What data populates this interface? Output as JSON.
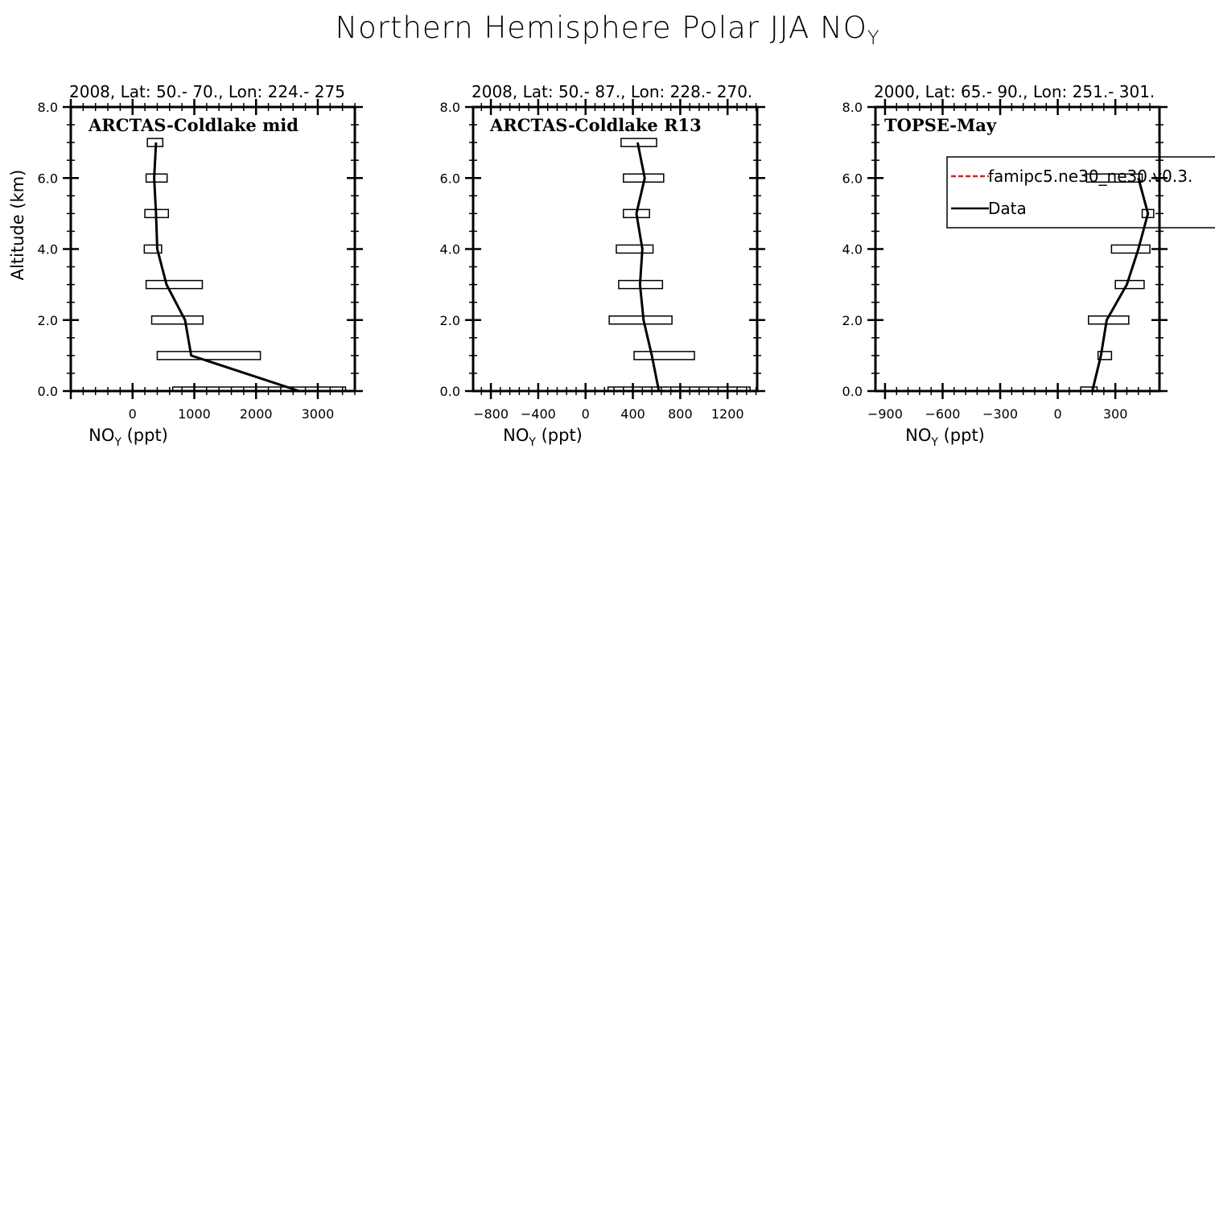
{
  "figure": {
    "title": "Northern Hemisphere Polar JJA NO",
    "title_sub": "Y",
    "background": "#ffffff"
  },
  "chart_data": [
    {
      "type": "line",
      "panel_name": "ARCTAS-Coldlake mid",
      "header": "2008, Lat:  50.- 70., Lon: 224.- 275",
      "xlabel": "NO",
      "xlabel_sub": "Y",
      "xlabel_unit": "(ppt)",
      "ylabel": "Altitude (km)",
      "xlim": [
        -1000,
        3600
      ],
      "ylim": [
        0,
        8
      ],
      "xticks": [
        0,
        1000,
        2000,
        3000
      ],
      "yticks": [
        "0.0",
        "2.0",
        "4.0",
        "6.0",
        "8.0"
      ],
      "series": [
        {
          "name": "Data",
          "color": "#000000",
          "altitude": [
            0,
            1,
            2,
            3,
            4,
            5,
            6,
            7
          ],
          "values": [
            2700,
            950,
            850,
            550,
            400,
            380,
            350,
            380
          ],
          "bars": [
            [
              650,
              3450
            ],
            [
              400,
              2070
            ],
            [
              310,
              1140
            ],
            [
              220,
              1130
            ],
            [
              190,
              470
            ],
            [
              200,
              580
            ],
            [
              220,
              560
            ],
            [
              240,
              490
            ]
          ]
        }
      ]
    },
    {
      "type": "line",
      "panel_name": "ARCTAS-Coldlake R13",
      "header": "2008, Lat:  50.- 87., Lon: 228.- 270.",
      "xlabel": "NO",
      "xlabel_sub": "Y",
      "xlabel_unit": "(ppt)",
      "ylabel": "",
      "xlim": [
        -950,
        1450
      ],
      "ylim": [
        0,
        8
      ],
      "xticks": [
        -800,
        -400,
        0,
        400,
        800,
        1200
      ],
      "yticks": [
        "0.0",
        "2.0",
        "4.0",
        "6.0",
        "8.0"
      ],
      "series": [
        {
          "name": "Data",
          "color": "#000000",
          "altitude": [
            0,
            1,
            2,
            3,
            4,
            5,
            6,
            7
          ],
          "values": [
            620,
            560,
            490,
            460,
            480,
            430,
            500,
            440
          ],
          "bars": [
            [
              190,
              1390
            ],
            [
              410,
              920
            ],
            [
              200,
              730
            ],
            [
              280,
              650
            ],
            [
              260,
              570
            ],
            [
              320,
              540
            ],
            [
              320,
              660
            ],
            [
              300,
              600
            ]
          ]
        }
      ]
    },
    {
      "type": "line",
      "panel_name": "TOPSE-May",
      "header": "2000, Lat: 65.- 90., Lon: 251.- 301.",
      "xlabel": "NO",
      "xlabel_sub": "Y",
      "xlabel_unit": "(ppt)",
      "ylabel": "",
      "xlim": [
        -950,
        530
      ],
      "ylim": [
        0,
        8
      ],
      "xticks": [
        -900,
        -600,
        -300,
        0,
        300
      ],
      "yticks": [
        "0.0",
        "2.0",
        "4.0",
        "6.0",
        "8.0"
      ],
      "legend": {
        "placement": "top-right",
        "entries": [
          {
            "label": "famipc5.ne30_ne30.v0.3.",
            "color": "#e41a1c",
            "style": "dashed"
          },
          {
            "label": "Data",
            "color": "#000000",
            "style": "solid"
          }
        ]
      },
      "series": [
        {
          "name": "Data",
          "color": "#000000",
          "altitude": [
            0,
            1,
            2,
            3,
            4,
            5,
            6
          ],
          "values": [
            180,
            225,
            255,
            360,
            420,
            470,
            420
          ],
          "bars": [
            [
              120,
              205
            ],
            [
              210,
              280
            ],
            [
              160,
              370
            ],
            [
              300,
              450
            ],
            [
              280,
              480
            ],
            [
              440,
              500
            ],
            [
              150,
              440
            ]
          ]
        }
      ]
    }
  ]
}
